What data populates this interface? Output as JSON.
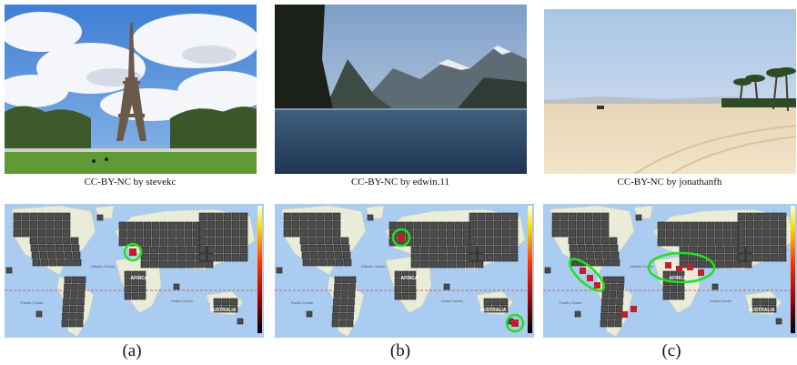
{
  "figure": {
    "panels": [
      {
        "id": "a",
        "credit": "CC-BY-NC by stevekc",
        "label": "(a)",
        "scene": "Eiffel Tower with cloudy sky and lawn",
        "highlight": "single circle over western Europe"
      },
      {
        "id": "b",
        "credit": "CC-BY-NC by edwin.11",
        "label": "(b)",
        "scene": "fjord with cliffs and mountains",
        "highlight": "circles over Scandinavia and New Zealand"
      },
      {
        "id": "c",
        "credit": "CC-BY-NC by jonathanfh",
        "label": "(c)",
        "scene": "sandy beach with palm trees",
        "highlight": "ellipses over western North America and Mediterranean"
      }
    ],
    "map_labels": {
      "atlantic": "Atlantic Ocean",
      "africa": "AFRICA",
      "indian": "Indian Ocean",
      "australia": "AUSTRALIA",
      "pacific": "Pacific Ocean"
    },
    "colors": {
      "ocean": "#a9ccf0",
      "land": "#e9ecd8",
      "cell": "#4c4c4c",
      "cell_stroke": "#1e1e1e",
      "highlight": "#22e01e",
      "hot": "#c0202c"
    }
  }
}
